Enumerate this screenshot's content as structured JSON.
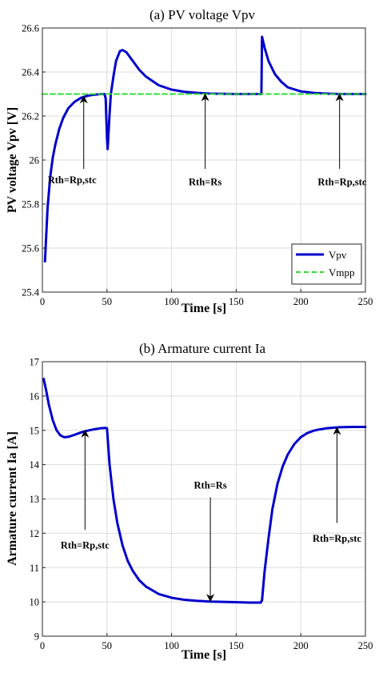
{
  "chart_data": [
    {
      "type": "line",
      "title": "(a) PV voltage Vpv",
      "xlabel": "Time [s]",
      "ylabel": "PV voltage Vpv [V]",
      "xlim": [
        0,
        250
      ],
      "ylim": [
        25.4,
        26.6
      ],
      "xticks": [
        0,
        50,
        100,
        150,
        200,
        250
      ],
      "yticks": [
        25.4,
        25.6,
        25.8,
        26,
        26.2,
        26.4,
        26.6
      ],
      "xtick_labels": [
        "0",
        "50",
        "100",
        "150",
        "200",
        "250"
      ],
      "ytick_labels": [
        "25.4",
        "25.6",
        "25.8",
        "26",
        "26.2",
        "26.4",
        "26.6"
      ],
      "grid": true,
      "legend": "bottom-right",
      "series": [
        {
          "name": "Vpv",
          "color": "#0000cd",
          "style": "solid",
          "x": [
            2,
            4,
            6,
            8,
            10,
            13,
            16,
            20,
            25,
            30,
            35,
            40,
            45,
            48,
            49,
            50,
            50.5,
            51,
            52,
            53,
            55,
            57,
            60,
            62,
            65,
            70,
            75,
            80,
            90,
            100,
            110,
            120,
            130,
            140,
            150,
            160,
            168,
            169.5,
            170,
            172,
            175,
            180,
            185,
            190,
            200,
            210,
            220,
            230,
            240,
            250
          ],
          "y": [
            25.54,
            25.78,
            25.92,
            26.01,
            26.07,
            26.14,
            26.19,
            26.235,
            26.265,
            26.283,
            26.292,
            26.297,
            26.3,
            26.3,
            26.28,
            26.1,
            26.05,
            26.1,
            26.21,
            26.3,
            26.38,
            26.45,
            26.495,
            26.5,
            26.49,
            26.45,
            26.41,
            26.38,
            26.34,
            26.32,
            26.31,
            26.305,
            26.302,
            26.301,
            26.3,
            26.3,
            26.3,
            26.3,
            26.56,
            26.51,
            26.45,
            26.39,
            26.355,
            26.33,
            26.312,
            26.305,
            26.302,
            26.3,
            26.3,
            26.3
          ]
        },
        {
          "name": "Vmpp",
          "color": "#33dd33",
          "style": "dashed",
          "x": [
            0,
            250
          ],
          "y": [
            26.3,
            26.3
          ]
        }
      ],
      "annotations": [
        {
          "text": "Rth=Rp,stc",
          "arrow_x": 32,
          "arrow_y": 26.29,
          "tail_y": 25.96,
          "label_x": 23,
          "label_y": 25.895
        },
        {
          "text": "Rth=Rs",
          "arrow_x": 126,
          "arrow_y": 26.3,
          "tail_y": 25.96,
          "label_x": 126,
          "label_y": 25.885
        },
        {
          "text": "Rth=Rp,stc",
          "arrow_x": 230,
          "arrow_y": 26.3,
          "tail_y": 25.96,
          "label_x": 232,
          "label_y": 25.885
        }
      ]
    },
    {
      "type": "line",
      "title": "(b) Armature current Ia",
      "xlabel": "Time [s]",
      "ylabel": "Armature current Ia [A]",
      "xlim": [
        0,
        250
      ],
      "ylim": [
        9,
        17
      ],
      "xticks": [
        0,
        50,
        100,
        150,
        200,
        250
      ],
      "yticks": [
        9,
        10,
        11,
        12,
        13,
        14,
        15,
        16,
        17
      ],
      "xtick_labels": [
        "0",
        "50",
        "100",
        "150",
        "200",
        "250"
      ],
      "ytick_labels": [
        "9",
        "10",
        "11",
        "12",
        "13",
        "14",
        "15",
        "16",
        "17"
      ],
      "grid": true,
      "series": [
        {
          "name": "",
          "color": "#0000cd",
          "style": "solid",
          "x": [
            1,
            3,
            5,
            8,
            11,
            14,
            17,
            20,
            25,
            30,
            35,
            40,
            45,
            49,
            50,
            52,
            55,
            58,
            62,
            66,
            70,
            75,
            80,
            90,
            100,
            110,
            120,
            130,
            140,
            150,
            160,
            169,
            170,
            172,
            175,
            178,
            182,
            186,
            190,
            195,
            200,
            205,
            210,
            215,
            220,
            230,
            240,
            250
          ],
          "y": [
            16.5,
            16.15,
            15.75,
            15.3,
            15.0,
            14.85,
            14.8,
            14.81,
            14.87,
            14.94,
            14.99,
            15.03,
            15.06,
            15.07,
            15.06,
            14.0,
            13.0,
            12.3,
            11.65,
            11.2,
            10.9,
            10.63,
            10.45,
            10.23,
            10.12,
            10.06,
            10.03,
            10.01,
            10.0,
            9.99,
            9.98,
            9.98,
            10.05,
            10.9,
            11.85,
            12.7,
            13.45,
            13.95,
            14.3,
            14.6,
            14.8,
            14.92,
            14.99,
            15.03,
            15.06,
            15.09,
            15.1,
            15.1
          ]
        }
      ],
      "annotations": [
        {
          "text": "Rth=Rp,stc",
          "arrow_x": 33,
          "arrow_y": 15.0,
          "tail_y": 12.1,
          "label_x": 33,
          "label_y": 11.55
        },
        {
          "text": "Rth=Rs",
          "arrow_x": 130,
          "arrow_y": 10.02,
          "tail_y": 13.05,
          "label_x": 130,
          "label_y": 13.3
        },
        {
          "text": "Rth=Rp,stc",
          "arrow_x": 228,
          "arrow_y": 15.08,
          "tail_y": 12.3,
          "label_x": 228,
          "label_y": 11.75
        }
      ]
    }
  ]
}
